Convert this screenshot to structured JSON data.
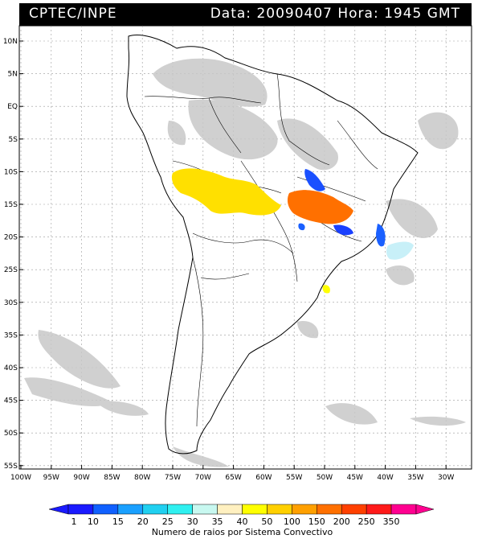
{
  "header": {
    "source": "CPTEC/INPE",
    "datetime": "Data: 20090407 Hora: 1945 GMT"
  },
  "lat_labels": [
    "10N",
    "5N",
    "EQ",
    "5S",
    "10S",
    "15S",
    "20S",
    "25S",
    "30S",
    "35S",
    "40S",
    "45S",
    "50S",
    "55S"
  ],
  "lon_labels": [
    "100W",
    "95W",
    "90W",
    "85W",
    "80W",
    "75W",
    "70W",
    "65W",
    "60W",
    "55W",
    "50W",
    "45W",
    "40W",
    "35W",
    "30W"
  ],
  "colorbar": {
    "values": [
      "1",
      "10",
      "15",
      "20",
      "25",
      "30",
      "35",
      "40",
      "50",
      "100",
      "150",
      "200",
      "250",
      "350"
    ],
    "colors": [
      "#1a1aff",
      "#1060ff",
      "#1aa0ff",
      "#20d0f0",
      "#30f0f0",
      "#c8f8f0",
      "#fff0c0",
      "#ffff00",
      "#ffd000",
      "#ffa000",
      "#ff7000",
      "#ff4000",
      "#ff1a1a",
      "#ff0090"
    ],
    "title": "Numero de raios por Sistema Convectivo"
  }
}
